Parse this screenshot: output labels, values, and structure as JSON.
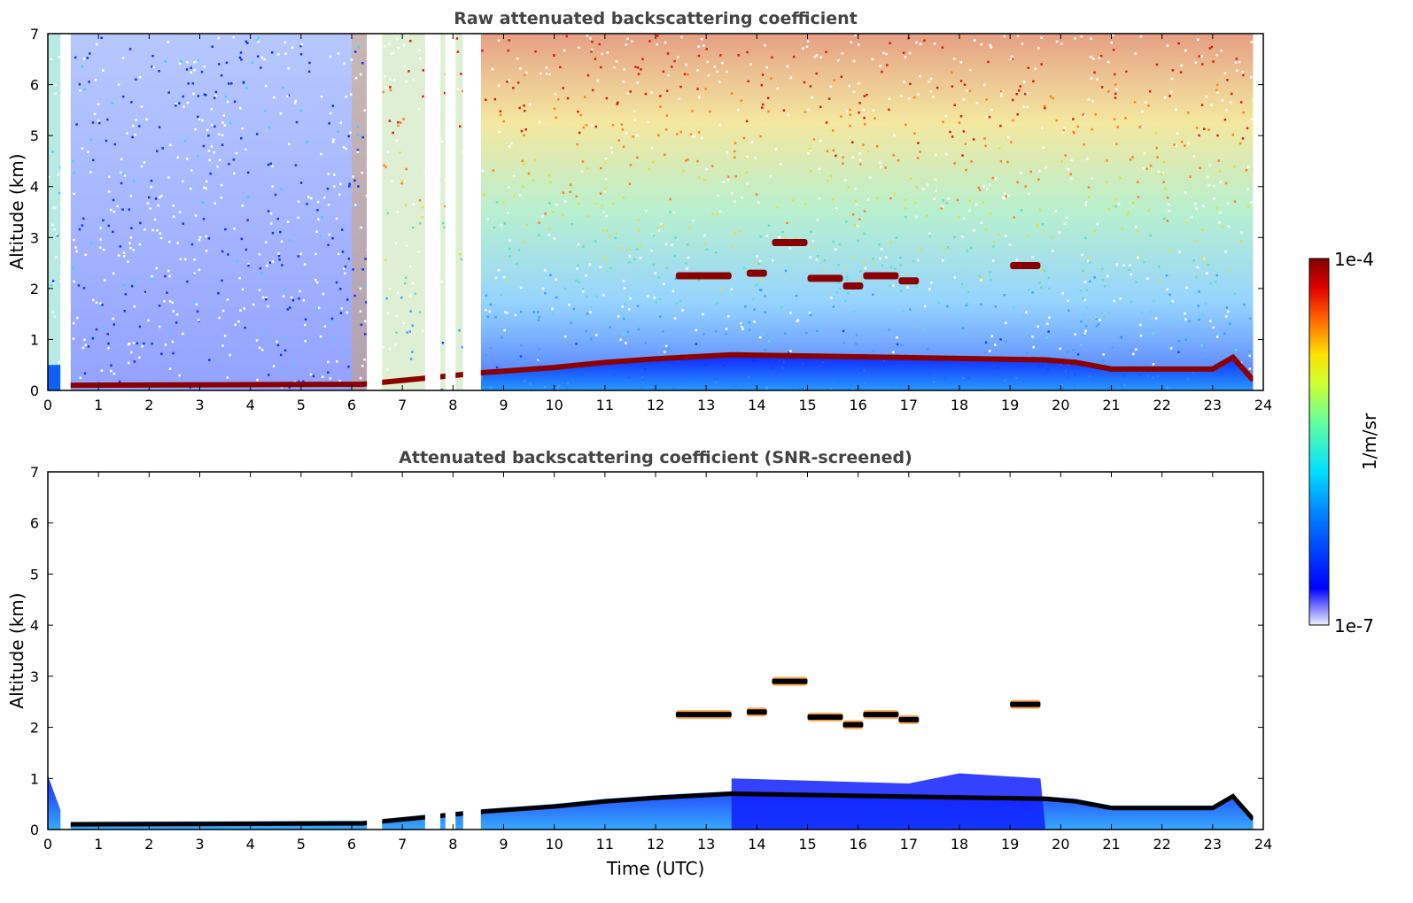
{
  "chart_data": [
    {
      "type": "heatmap",
      "title": "Raw attenuated backscattering coefficient",
      "xlabel": "",
      "ylabel": "Altitude (km)",
      "xlim": [
        0,
        24
      ],
      "ylim": [
        0,
        7
      ],
      "xticks": [
        0,
        1,
        2,
        3,
        4,
        5,
        6,
        7,
        8,
        9,
        10,
        11,
        12,
        13,
        14,
        15,
        16,
        17,
        18,
        19,
        20,
        21,
        22,
        23,
        24
      ],
      "yticks": [
        0,
        1,
        2,
        3,
        4,
        5,
        6,
        7
      ],
      "data_gaps_hours": [
        [
          0.25,
          0.45
        ],
        [
          6.3,
          6.6
        ],
        [
          7.45,
          7.75
        ],
        [
          7.85,
          8.05
        ],
        [
          8.2,
          8.55
        ],
        [
          23.8,
          24
        ]
      ],
      "boundary_layer_top_km": [
        {
          "t": 0.3,
          "z": 0.1
        },
        {
          "t": 6.2,
          "z": 0.12
        },
        {
          "t": 8.6,
          "z": 0.35
        },
        {
          "t": 10.0,
          "z": 0.45
        },
        {
          "t": 11.0,
          "z": 0.55
        },
        {
          "t": 12.0,
          "z": 0.62
        },
        {
          "t": 13.5,
          "z": 0.7
        },
        {
          "t": 19.7,
          "z": 0.6
        },
        {
          "t": 20.3,
          "z": 0.55
        },
        {
          "t": 21.0,
          "z": 0.42
        },
        {
          "t": 22.0,
          "z": 0.42
        },
        {
          "t": 23.0,
          "z": 0.42
        },
        {
          "t": 23.4,
          "z": 0.65
        },
        {
          "t": 23.8,
          "z": 0.2
        }
      ],
      "cloud_layers": [
        {
          "t_start": 12.4,
          "t_end": 13.5,
          "z_km": 2.25
        },
        {
          "t_start": 13.8,
          "t_end": 14.2,
          "z_km": 2.3
        },
        {
          "t_start": 14.3,
          "t_end": 15.0,
          "z_km": 2.9
        },
        {
          "t_start": 15.0,
          "t_end": 15.7,
          "z_km": 2.2
        },
        {
          "t_start": 15.7,
          "t_end": 16.1,
          "z_km": 2.05
        },
        {
          "t_start": 16.1,
          "t_end": 16.8,
          "z_km": 2.25
        },
        {
          "t_start": 16.8,
          "t_end": 17.2,
          "z_km": 2.15
        },
        {
          "t_start": 19.0,
          "t_end": 19.6,
          "z_km": 2.45
        }
      ]
    },
    {
      "type": "heatmap",
      "title": "Attenuated backscattering coefficient (SNR-screened)",
      "xlabel": "Time (UTC)",
      "ylabel": "Altitude (km)",
      "xlim": [
        0,
        24
      ],
      "ylim": [
        0,
        7
      ],
      "xticks": [
        0,
        1,
        2,
        3,
        4,
        5,
        6,
        7,
        8,
        9,
        10,
        11,
        12,
        13,
        14,
        15,
        16,
        17,
        18,
        19,
        20,
        21,
        22,
        23,
        24
      ],
      "yticks": [
        0,
        1,
        2,
        3,
        4,
        5,
        6,
        7
      ]
    }
  ],
  "colorbar": {
    "label": "1/m/sr",
    "max_label": "1e-4",
    "min_label": "1e-7",
    "scale": "log",
    "colormap": "jet",
    "colors": [
      "#eeeeff",
      "#0000ff",
      "#00a0ff",
      "#00ffff",
      "#80ff80",
      "#ffff00",
      "#ff8000",
      "#ff0000",
      "#800000"
    ]
  },
  "colors": {
    "cloud_core": "#8b0000",
    "cloud_core_screened": "#000000",
    "background": "#ffffff"
  }
}
